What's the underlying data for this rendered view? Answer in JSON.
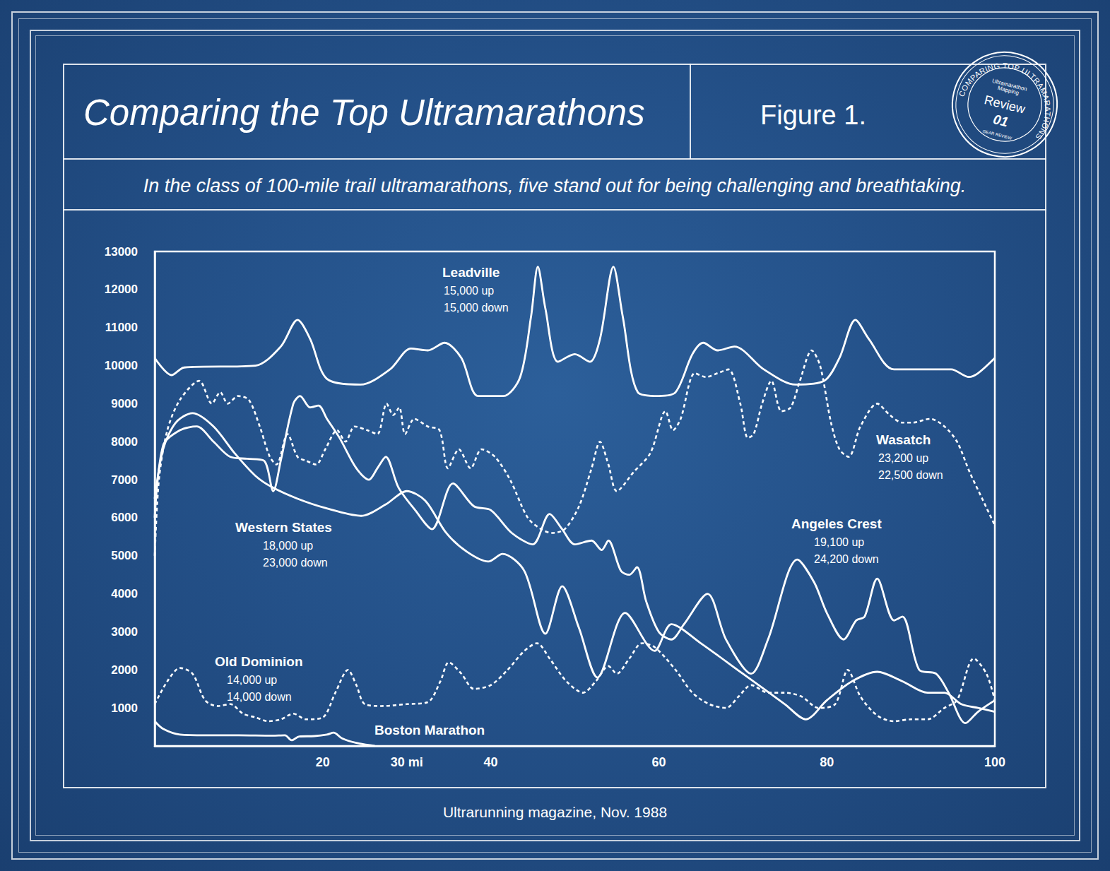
{
  "page": {
    "figure_label": "Figure 1.",
    "source": "Ultrarunning magazine, Nov. 1988",
    "badge": {
      "ring": "COMPARING TOP ULTRAMARATHONS",
      "lines": [
        "Ultramarathon",
        "Mapping"
      ],
      "label": "Review",
      "number": "01",
      "footer": "GEAR REVIEW"
    }
  },
  "chart_data": {
    "type": "line",
    "title": "Comparing the Top Ultramarathons",
    "subtitle": "In the class of 100-mile trail ultramarathons, five stand out for being challenging and breathtaking.",
    "xlim": [
      0,
      100
    ],
    "xticks": [
      20,
      {
        "value": 30,
        "label": "30 mi"
      },
      40,
      60,
      80,
      100
    ],
    "ylim": [
      0,
      13000
    ],
    "yticks": [
      1000,
      2000,
      3000,
      4000,
      5000,
      6000,
      7000,
      8000,
      9000,
      10000,
      11000,
      12000,
      13000
    ],
    "grid": false,
    "series": [
      {
        "name": "Leadville",
        "color": "#ffffff",
        "line_style": "solid",
        "annotation": [
          "15,000 up",
          "15,000 down"
        ],
        "x": [
          0,
          2,
          3.5,
          12,
          15,
          17,
          18.5,
          20.5,
          24.5,
          28,
          30.5,
          32.5,
          34.5,
          36.5,
          38.5,
          41.5,
          43.5,
          44.8,
          45.6,
          46.5,
          48,
          50,
          51.8,
          53,
          54.6,
          55.7,
          57.5,
          60,
          62,
          64,
          65.3,
          67,
          69,
          72.5,
          76.3,
          79.7,
          81.5,
          83.4,
          85,
          88,
          94.8,
          96.9,
          98,
          100
        ],
        "values": [
          10200,
          9750,
          9950,
          10000,
          10500,
          11200,
          10700,
          9650,
          9500,
          9900,
          10450,
          10400,
          10600,
          10200,
          9200,
          9200,
          9700,
          11300,
          12600,
          11500,
          10100,
          10300,
          10100,
          10700,
          12600,
          11300,
          9300,
          9200,
          9300,
          10300,
          10600,
          10400,
          10500,
          9900,
          9500,
          9600,
          10200,
          11200,
          10700,
          9900,
          9900,
          9700,
          9800,
          10200
        ]
      },
      {
        "name": "Wasatch",
        "color": "#ffffff",
        "line_style": "dotted",
        "annotation": [
          "23,200 up",
          "22,500 down"
        ],
        "x": [
          0,
          0.5,
          1.5,
          3,
          5.3,
          6.8,
          7.8,
          8.7,
          9.9,
          11.2,
          12.5,
          13.7,
          14.5,
          15.8,
          17,
          18,
          19.2,
          20.3,
          21.7,
          22.7,
          23.8,
          25.3,
          26.5,
          27.6,
          28.4,
          29.1,
          29.8,
          30.9,
          32.5,
          33.9,
          34.9,
          36.2,
          37.6,
          38.9,
          40.5,
          42.3,
          44.4,
          46,
          47.3,
          48.8,
          50.5,
          52,
          53,
          54,
          55,
          57,
          59,
          60.8,
          61.7,
          62.6,
          64.3,
          65.6,
          67,
          68.3,
          69.7,
          70.6,
          71.3,
          72.3,
          73.4,
          74.6,
          75.7,
          76.8,
          78.2,
          79.2,
          80.5,
          81.5,
          82.6,
          84,
          86,
          87.5,
          89,
          90.2,
          92.3,
          94,
          95.5,
          97,
          98.5,
          100
        ],
        "values": [
          5000,
          7000,
          8300,
          9100,
          9600,
          9000,
          9300,
          9000,
          9200,
          9100,
          8400,
          7600,
          7400,
          8200,
          7600,
          7500,
          7400,
          7800,
          8300,
          8000,
          8400,
          8300,
          8200,
          9000,
          8700,
          8900,
          8200,
          8600,
          8400,
          8300,
          7300,
          7800,
          7300,
          7800,
          7600,
          7000,
          6000,
          5700,
          5600,
          5700,
          6300,
          7300,
          8000,
          7400,
          6700,
          7200,
          7700,
          8800,
          8300,
          8600,
          9800,
          9700,
          9800,
          9900,
          9000,
          8100,
          8200,
          9000,
          9600,
          8800,
          8900,
          9600,
          10400,
          10000,
          8500,
          7800,
          7600,
          8400,
          9000,
          8700,
          8500,
          8500,
          8600,
          8400,
          8000,
          7200,
          6500,
          5800
        ]
      },
      {
        "name": "Western States",
        "color": "#ffffff",
        "line_style": "solid",
        "annotation": [
          "18,000 up",
          "23,000 down"
        ],
        "x": [
          0,
          1,
          2.5,
          4.5,
          7,
          9.5,
          12,
          14,
          17,
          20.4,
          24.6,
          27.5,
          30,
          32.2,
          34.7,
          37.2,
          39.7,
          41.4,
          44,
          46.5,
          48.5,
          50.5,
          52.7,
          56,
          59.5,
          61.5,
          65,
          70,
          75,
          77.5,
          80,
          83,
          86,
          89,
          92,
          94,
          96,
          98,
          100
        ],
        "values": [
          6500,
          7800,
          8500,
          8750,
          8400,
          7700,
          7100,
          6800,
          6500,
          6250,
          6050,
          6350,
          6700,
          6450,
          5600,
          5100,
          4850,
          5050,
          4600,
          2950,
          4200,
          3100,
          1800,
          3500,
          2500,
          3200,
          2700,
          1900,
          1100,
          700,
          1200,
          1700,
          1950,
          1700,
          1400,
          1400,
          1100,
          1000,
          900
        ]
      },
      {
        "name": "Angeles Crest",
        "color": "#ffffff",
        "line_style": "solid",
        "annotation": [
          "19,100 up",
          "24,200 down"
        ],
        "x": [
          0,
          1,
          3,
          5,
          7,
          9,
          11,
          13,
          14.1,
          15,
          16.5,
          17.3,
          18.5,
          19.5,
          20.5,
          22,
          24,
          25.5,
          26.5,
          27.5,
          29,
          31,
          33,
          35.5,
          38,
          40,
          42.5,
          45,
          47,
          48.5,
          50,
          52,
          53.2,
          54,
          55.5,
          56.5,
          57.4,
          58.5,
          60,
          61.5,
          63,
          65.8,
          68,
          71,
          73,
          76.5,
          78.5,
          80,
          82,
          83.5,
          84.5,
          86,
          88,
          89,
          91,
          93,
          94.5,
          96.5,
          98,
          100
        ],
        "values": [
          6000,
          7900,
          8300,
          8400,
          8000,
          7600,
          7550,
          7500,
          6700,
          7500,
          9000,
          9200,
          8900,
          8950,
          8600,
          8100,
          7300,
          7000,
          7300,
          7600,
          6800,
          6200,
          5700,
          6900,
          6300,
          6200,
          5600,
          5300,
          6100,
          5700,
          5300,
          5400,
          5150,
          5400,
          4600,
          4500,
          4700,
          3800,
          3000,
          2800,
          3200,
          4000,
          2800,
          1900,
          2800,
          4900,
          4300,
          3500,
          2800,
          3300,
          3400,
          4400,
          3300,
          3400,
          2000,
          1900,
          1400,
          600,
          900,
          1200
        ]
      },
      {
        "name": "Old Dominion",
        "color": "#ffffff",
        "line_style": "dotted",
        "annotation": [
          "14,000 up",
          "14,000 down"
        ],
        "x": [
          0,
          1.5,
          3,
          4.5,
          6,
          7.5,
          9,
          10.5,
          12,
          13.5,
          15,
          16.5,
          18,
          20,
          21.5,
          23,
          24,
          25,
          27,
          30,
          32.5,
          34,
          35,
          36.5,
          38,
          40,
          42,
          44,
          45.5,
          47,
          49,
          51,
          52.5,
          54,
          55,
          56.5,
          58,
          59.5,
          62,
          64,
          66,
          68,
          69.5,
          71,
          73,
          75,
          77,
          79,
          81,
          82.5,
          84,
          86,
          88,
          90,
          92,
          94,
          95.5,
          97.5,
          99,
          100
        ],
        "values": [
          1100,
          1700,
          2050,
          1900,
          1200,
          1050,
          1100,
          850,
          750,
          650,
          700,
          850,
          700,
          750,
          1400,
          2000,
          1600,
          1100,
          1050,
          1100,
          1150,
          1700,
          2200,
          1900,
          1500,
          1600,
          2000,
          2500,
          2700,
          2300,
          1700,
          1400,
          1700,
          2100,
          1900,
          2300,
          2700,
          2600,
          2000,
          1400,
          1100,
          1000,
          1300,
          1600,
          1400,
          1400,
          1300,
          1000,
          1100,
          2000,
          1300,
          800,
          650,
          700,
          700,
          1000,
          1200,
          2300,
          1900,
          1200
        ]
      },
      {
        "name": "Boston Marathon",
        "color": "#ffffff",
        "line_style": "solid",
        "x": [
          0,
          1,
          3,
          6,
          10,
          14,
          15.5,
          16.3,
          17.2,
          19,
          20.5,
          21.3,
          22.3,
          24,
          26.2
        ],
        "values": [
          650,
          450,
          300,
          280,
          280,
          270,
          280,
          150,
          250,
          260,
          300,
          350,
          200,
          80,
          0
        ]
      }
    ]
  }
}
